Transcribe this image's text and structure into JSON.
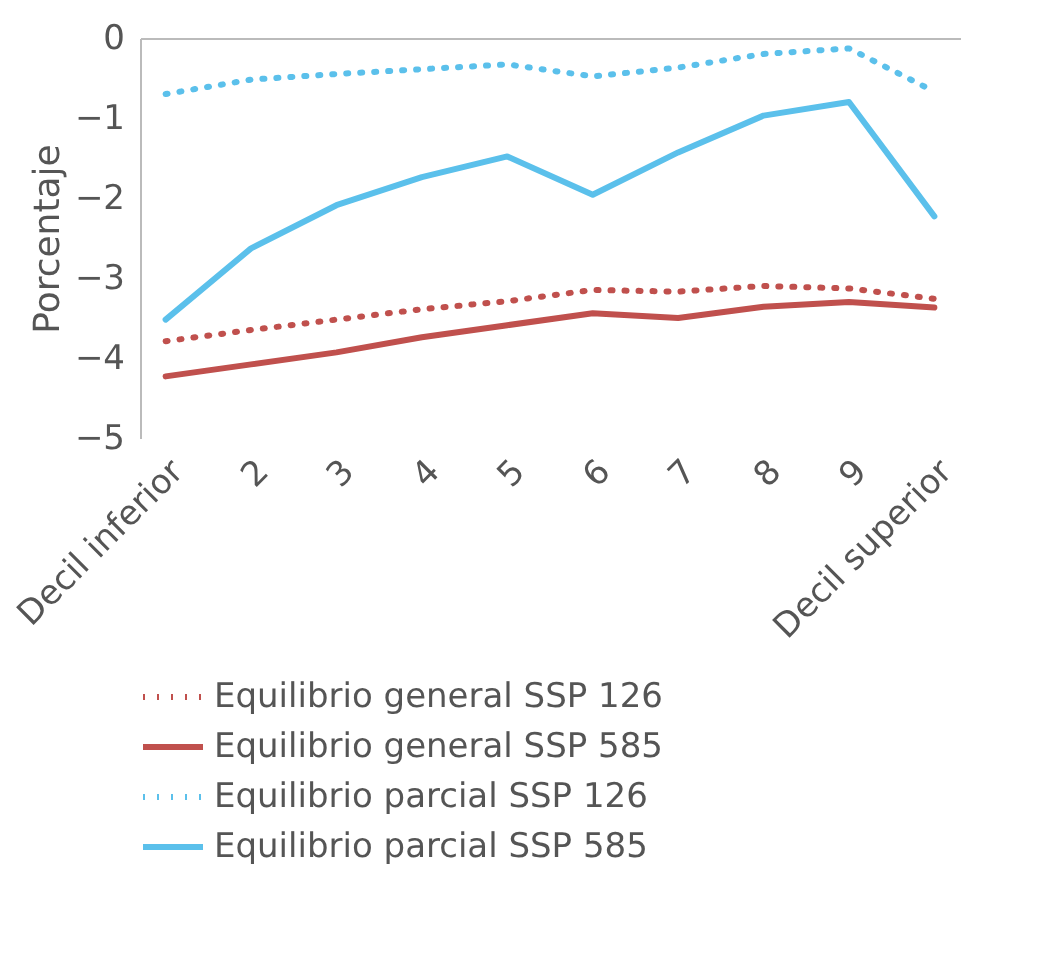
{
  "chart_data": {
    "type": "line",
    "ylabel": "Porcentaje",
    "categories": [
      "Decil inferior",
      "2",
      "3",
      "4",
      "5",
      "6",
      "7",
      "8",
      "9",
      "Decil superior"
    ],
    "ylim": [
      -5,
      0
    ],
    "yticks": [
      {
        "value": 0,
        "label": "0"
      },
      {
        "value": -1,
        "label": "−1"
      },
      {
        "value": -2,
        "label": "−2"
      },
      {
        "value": -3,
        "label": "−3"
      },
      {
        "value": -4,
        "label": "−4"
      },
      {
        "value": -5,
        "label": "−5"
      }
    ],
    "grid": false,
    "legend": "bottom",
    "marker": "none",
    "series": [
      {
        "name": "Equilibrio general SSP 126",
        "color": "#c0504d",
        "line_style": "dotted",
        "values": [
          -3.79,
          -3.65,
          -3.52,
          -3.39,
          -3.29,
          -3.15,
          -3.17,
          -3.1,
          -3.13,
          -3.26
        ]
      },
      {
        "name": "Equilibrio general SSP 585",
        "color": "#c0504d",
        "line_style": "solid",
        "values": [
          -4.23,
          -4.08,
          -3.93,
          -3.74,
          -3.59,
          -3.44,
          -3.5,
          -3.36,
          -3.3,
          -3.37
        ]
      },
      {
        "name": "Equilibrio parcial SSP 126",
        "color": "#5bc0eb",
        "line_style": "dotted",
        "values": [
          -0.7,
          -0.52,
          -0.45,
          -0.39,
          -0.33,
          -0.48,
          -0.37,
          -0.2,
          -0.13,
          -0.67
        ]
      },
      {
        "name": "Equilibrio parcial SSP 585",
        "color": "#5bc0eb",
        "line_style": "solid",
        "values": [
          -3.52,
          -2.63,
          -2.09,
          -1.74,
          -1.48,
          -1.96,
          -1.43,
          -0.97,
          -0.8,
          -2.23
        ]
      }
    ]
  }
}
